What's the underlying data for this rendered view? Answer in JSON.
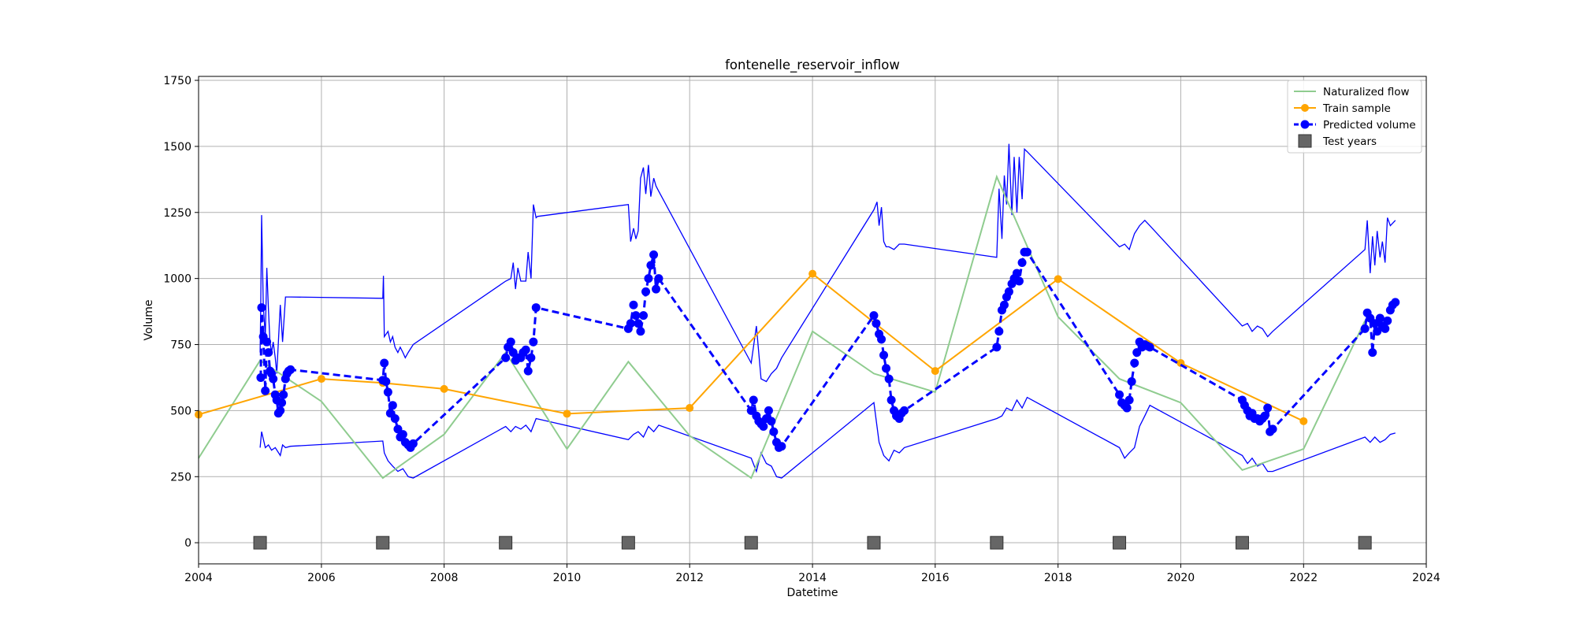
{
  "chart_data": {
    "type": "line",
    "title": "fontenelle_reservoir_inflow",
    "xlabel": "Datetime",
    "ylabel": "Volume",
    "xlim": [
      "2004-01-01",
      "2024-01-01"
    ],
    "ylim": [
      -80,
      1765
    ],
    "x_ticks": [
      "2004",
      "2006",
      "2008",
      "2010",
      "2012",
      "2014",
      "2016",
      "2018",
      "2020",
      "2022",
      "2024"
    ],
    "y_ticks": [
      0,
      250,
      500,
      750,
      1000,
      1250,
      1500,
      1750
    ],
    "y_tick_labels": [
      "0",
      "250",
      "500",
      "750",
      "1000",
      "1250",
      "1500",
      "1750"
    ],
    "grid": true,
    "legend": {
      "placement": "top-right",
      "entries": [
        "Naturalized flow",
        "Train sample",
        "Predicted volume",
        "Test years"
      ]
    },
    "colors": {
      "naturalized": "#8fcc8f",
      "train": "#ffa500",
      "predicted": "#0000ff",
      "test": "#666666"
    },
    "series": [
      {
        "name": "Naturalized flow",
        "style": "line",
        "x": [
          "2004-01-01",
          "2005-01-01",
          "2006-01-01",
          "2007-01-01",
          "2008-01-01",
          "2009-01-01",
          "2010-01-01",
          "2011-01-01",
          "2012-01-01",
          "2013-01-01",
          "2014-01-01",
          "2015-01-01",
          "2016-01-01",
          "2017-01-01",
          "2018-01-01",
          "2019-01-01",
          "2020-01-01",
          "2021-01-01",
          "2022-01-01",
          "2023-01-01"
        ],
        "y": [
          320,
          690,
          535,
          245,
          410,
          720,
          355,
          685,
          405,
          245,
          800,
          640,
          570,
          1385,
          855,
          620,
          530,
          275,
          355,
          840
        ]
      },
      {
        "name": "Train sample",
        "style": "line+markers",
        "x": [
          "2004-01-01",
          "2006-01-01",
          "2007-01-01",
          "2008-01-01",
          "2010-01-01",
          "2012-01-01",
          "2014-01-01",
          "2016-01-01",
          "2018-01-01",
          "2020-01-01",
          "2022-01-01"
        ],
        "y": [
          485,
          620,
          605,
          582,
          488,
          510,
          1018,
          650,
          998,
          680,
          460
        ]
      },
      {
        "name": "Predicted volume",
        "style": "dashed+markers",
        "x": [
          "2005-01-05",
          "2005-01-10",
          "2005-01-20",
          "2005-02-01",
          "2005-02-10",
          "2005-02-20",
          "2005-03-01",
          "2005-03-10",
          "2005-03-20",
          "2005-04-01",
          "2005-04-10",
          "2005-04-20",
          "2005-05-01",
          "2005-05-10",
          "2005-05-20",
          "2005-06-01",
          "2005-06-10",
          "2005-06-20",
          "2005-07-01",
          "2007-01-01",
          "2007-01-10",
          "2007-01-20",
          "2007-02-01",
          "2007-02-15",
          "2007-03-01",
          "2007-03-15",
          "2007-04-01",
          "2007-04-15",
          "2007-05-01",
          "2007-05-15",
          "2007-06-01",
          "2007-06-15",
          "2007-07-01",
          "2009-01-01",
          "2009-01-15",
          "2009-02-01",
          "2009-02-15",
          "2009-03-01",
          "2009-03-15",
          "2009-04-01",
          "2009-04-15",
          "2009-05-01",
          "2009-05-15",
          "2009-06-01",
          "2009-06-15",
          "2009-07-01",
          "2011-01-01",
          "2011-01-15",
          "2011-02-01",
          "2011-02-15",
          "2011-03-01",
          "2011-03-15",
          "2011-04-01",
          "2011-04-15",
          "2011-05-01",
          "2011-05-15",
          "2011-06-01",
          "2011-06-15",
          "2011-07-01",
          "2013-01-01",
          "2013-01-15",
          "2013-02-01",
          "2013-02-15",
          "2013-03-01",
          "2013-03-15",
          "2013-04-01",
          "2013-04-15",
          "2013-05-01",
          "2013-05-15",
          "2013-06-01",
          "2013-06-15",
          "2013-07-01",
          "2015-01-01",
          "2015-01-15",
          "2015-02-01",
          "2015-02-15",
          "2015-03-01",
          "2015-03-15",
          "2015-04-01",
          "2015-04-15",
          "2015-05-01",
          "2015-05-15",
          "2015-06-01",
          "2015-06-15",
          "2015-07-01",
          "2017-01-01",
          "2017-01-15",
          "2017-02-01",
          "2017-02-15",
          "2017-03-01",
          "2017-03-15",
          "2017-04-01",
          "2017-04-15",
          "2017-05-01",
          "2017-05-15",
          "2017-06-01",
          "2017-06-15",
          "2017-07-01",
          "2019-01-01",
          "2019-01-15",
          "2019-02-01",
          "2019-02-15",
          "2019-03-01",
          "2019-03-15",
          "2019-04-01",
          "2019-04-15",
          "2019-05-01",
          "2019-05-15",
          "2019-06-01",
          "2019-06-15",
          "2019-07-01",
          "2021-01-01",
          "2021-01-15",
          "2021-02-01",
          "2021-02-15",
          "2021-03-01",
          "2021-03-15",
          "2021-04-01",
          "2021-04-15",
          "2021-05-01",
          "2021-05-15",
          "2021-06-01",
          "2021-06-15",
          "2021-07-01",
          "2023-01-01",
          "2023-01-15",
          "2023-02-01",
          "2023-02-15",
          "2023-03-01",
          "2023-03-15",
          "2023-04-01",
          "2023-04-15",
          "2023-05-01",
          "2023-05-15",
          "2023-06-01",
          "2023-06-15",
          "2023-07-01"
        ],
        "y": [
          625,
          890,
          780,
          575,
          760,
          720,
          650,
          640,
          620,
          560,
          540,
          490,
          500,
          530,
          560,
          620,
          640,
          650,
          655,
          615,
          680,
          610,
          570,
          490,
          520,
          470,
          430,
          400,
          410,
          380,
          370,
          360,
          375,
          700,
          740,
          760,
          720,
          690,
          700,
          700,
          720,
          730,
          650,
          700,
          760,
          890,
          810,
          830,
          900,
          860,
          830,
          800,
          860,
          950,
          1000,
          1050,
          1090,
          960,
          1000,
          500,
          540,
          480,
          460,
          450,
          440,
          470,
          500,
          460,
          420,
          380,
          360,
          365,
          860,
          830,
          790,
          770,
          710,
          660,
          620,
          540,
          500,
          480,
          470,
          490,
          500,
          740,
          800,
          880,
          900,
          930,
          950,
          980,
          1000,
          1020,
          990,
          1060,
          1100,
          1100,
          560,
          530,
          520,
          510,
          540,
          610,
          680,
          720,
          760,
          740,
          750,
          745,
          740,
          540,
          520,
          500,
          480,
          490,
          470,
          470,
          460,
          470,
          480,
          510,
          420,
          430,
          810,
          870,
          850,
          720,
          830,
          800,
          850,
          820,
          810,
          840,
          880,
          900,
          910
        ]
      },
      {
        "name": "Test years",
        "style": "markers",
        "x": [
          "2005-01-01",
          "2007-01-01",
          "2009-01-01",
          "2011-01-01",
          "2013-01-01",
          "2015-01-01",
          "2017-01-01",
          "2019-01-01",
          "2021-01-01",
          "2023-01-01"
        ],
        "y": [
          0,
          0,
          0,
          0,
          0,
          0,
          0,
          0,
          0,
          0
        ]
      }
    ],
    "prediction_interval": {
      "upper": {
        "x": [
          "2005-01-01",
          "2005-01-05",
          "2005-01-10",
          "2005-01-20",
          "2005-02-01",
          "2005-02-10",
          "2005-02-20",
          "2005-03-01",
          "2005-03-10",
          "2005-03-20",
          "2005-04-01",
          "2005-04-10",
          "2005-05-01",
          "2005-05-15",
          "2005-06-01",
          "2005-06-15",
          "2005-07-01",
          "2007-01-01",
          "2007-01-05",
          "2007-01-10",
          "2007-02-01",
          "2007-02-15",
          "2007-03-01",
          "2007-03-15",
          "2007-04-01",
          "2007-04-15",
          "2007-05-01",
          "2007-05-15",
          "2007-06-01",
          "2007-07-01",
          "2009-01-01",
          "2009-02-01",
          "2009-02-15",
          "2009-03-01",
          "2009-03-15",
          "2009-04-01",
          "2009-05-01",
          "2009-05-15",
          "2009-06-01",
          "2009-06-15",
          "2009-07-01",
          "2009-07-10",
          "2011-01-01",
          "2011-01-15",
          "2011-02-01",
          "2011-02-15",
          "2011-03-01",
          "2011-03-15",
          "2011-04-01",
          "2011-04-15",
          "2011-05-01",
          "2011-05-15",
          "2011-06-01",
          "2011-06-15",
          "2011-07-01",
          "2013-01-01",
          "2013-02-01",
          "2013-03-01",
          "2013-04-01",
          "2013-05-01",
          "2013-06-01",
          "2013-07-01",
          "2015-01-01",
          "2015-01-20",
          "2015-02-01",
          "2015-02-15",
          "2015-03-01",
          "2015-03-15",
          "2015-04-01",
          "2015-05-01",
          "2015-06-01",
          "2015-07-01",
          "2017-01-01",
          "2017-01-15",
          "2017-02-01",
          "2017-02-15",
          "2017-03-01",
          "2017-03-15",
          "2017-04-01",
          "2017-04-15",
          "2017-05-01",
          "2017-05-15",
          "2017-06-01",
          "2017-06-15",
          "2017-07-01",
          "2019-01-01",
          "2019-02-01",
          "2019-03-01",
          "2019-04-01",
          "2019-05-01",
          "2019-06-01",
          "2019-07-01",
          "2021-01-01",
          "2021-02-01",
          "2021-03-01",
          "2021-04-01",
          "2021-05-01",
          "2021-06-01",
          "2021-07-01",
          "2023-01-01",
          "2023-01-15",
          "2023-02-01",
          "2023-02-15",
          "2023-03-01",
          "2023-03-15",
          "2023-04-01",
          "2023-04-15",
          "2023-05-01",
          "2023-05-15",
          "2023-06-01",
          "2023-07-01"
        ],
        "y": [
          720,
          900,
          1240,
          900,
          780,
          1040,
          880,
          760,
          720,
          760,
          700,
          640,
          900,
          760,
          930,
          930,
          930,
          925,
          1010,
          780,
          800,
          760,
          780,
          740,
          720,
          740,
          720,
          700,
          720,
          750,
          990,
          1000,
          1060,
          960,
          1040,
          990,
          990,
          1100,
          1000,
          1280,
          1230,
          1235,
          1280,
          1140,
          1190,
          1150,
          1180,
          1380,
          1420,
          1320,
          1430,
          1310,
          1380,
          1350,
          1330,
          680,
          820,
          620,
          610,
          640,
          660,
          700,
          1260,
          1290,
          1200,
          1270,
          1140,
          1120,
          1120,
          1110,
          1130,
          1130,
          1080,
          1340,
          1150,
          1390,
          1280,
          1510,
          1240,
          1460,
          1250,
          1460,
          1300,
          1490,
          1480,
          1120,
          1130,
          1110,
          1170,
          1200,
          1220,
          1200,
          820,
          830,
          800,
          820,
          810,
          780,
          800,
          1110,
          1220,
          1020,
          1160,
          1050,
          1180,
          1080,
          1140,
          1060,
          1230,
          1200,
          1220
        ]
      },
      "lower": {
        "x": [
          "2005-01-01",
          "2005-01-10",
          "2005-02-01",
          "2005-02-20",
          "2005-03-10",
          "2005-04-01",
          "2005-05-01",
          "2005-05-15",
          "2005-06-01",
          "2005-07-01",
          "2007-01-01",
          "2007-01-10",
          "2007-02-01",
          "2007-03-01",
          "2007-04-01",
          "2007-05-01",
          "2007-06-01",
          "2007-07-01",
          "2009-01-01",
          "2009-02-01",
          "2009-03-01",
          "2009-04-01",
          "2009-05-01",
          "2009-06-01",
          "2009-07-01",
          "2011-01-01",
          "2011-02-01",
          "2011-03-01",
          "2011-04-01",
          "2011-05-01",
          "2011-06-01",
          "2011-07-01",
          "2013-01-01",
          "2013-02-01",
          "2013-03-01",
          "2013-04-01",
          "2013-05-01",
          "2013-06-01",
          "2013-07-01",
          "2015-01-01",
          "2015-02-01",
          "2015-03-01",
          "2015-04-01",
          "2015-05-01",
          "2015-06-01",
          "2015-07-01",
          "2017-01-01",
          "2017-02-01",
          "2017-03-01",
          "2017-04-01",
          "2017-05-01",
          "2017-06-01",
          "2017-07-01",
          "2019-01-01",
          "2019-02-01",
          "2019-03-01",
          "2019-04-01",
          "2019-05-01",
          "2019-06-01",
          "2019-07-01",
          "2021-01-01",
          "2021-02-01",
          "2021-03-01",
          "2021-04-01",
          "2021-05-01",
          "2021-06-01",
          "2021-07-01",
          "2023-01-01",
          "2023-02-01",
          "2023-03-01",
          "2023-04-01",
          "2023-05-01",
          "2023-06-01",
          "2023-07-01"
        ],
        "y": [
          360,
          420,
          360,
          370,
          350,
          360,
          330,
          370,
          360,
          365,
          385,
          340,
          310,
          290,
          270,
          280,
          250,
          245,
          440,
          420,
          440,
          430,
          445,
          420,
          470,
          390,
          410,
          420,
          400,
          440,
          420,
          445,
          320,
          270,
          340,
          300,
          290,
          250,
          245,
          530,
          380,
          330,
          310,
          350,
          340,
          360,
          470,
          480,
          510,
          500,
          540,
          510,
          550,
          360,
          320,
          340,
          360,
          440,
          480,
          520,
          330,
          300,
          320,
          290,
          300,
          270,
          270,
          400,
          380,
          400,
          380,
          390,
          410,
          415
        ]
      }
    }
  }
}
